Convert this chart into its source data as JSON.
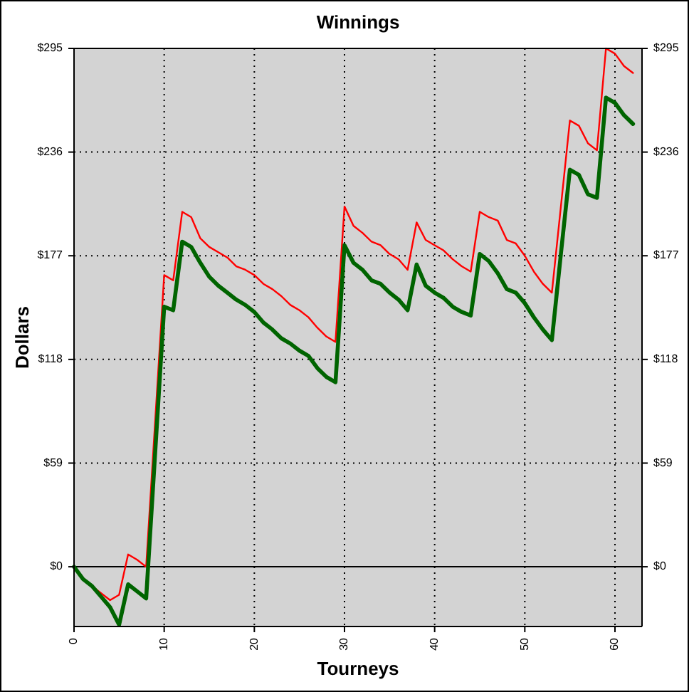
{
  "chart_data": {
    "type": "line",
    "title": "Winnings",
    "xlabel": "Tourneys",
    "ylabel": "Dollars",
    "x": [
      0,
      1,
      2,
      3,
      4,
      5,
      6,
      7,
      8,
      9,
      10,
      11,
      12,
      13,
      14,
      15,
      16,
      17,
      18,
      19,
      20,
      21,
      22,
      23,
      24,
      25,
      26,
      27,
      28,
      29,
      30,
      31,
      32,
      33,
      34,
      35,
      36,
      37,
      38,
      39,
      40,
      41,
      42,
      43,
      44,
      45,
      46,
      47,
      48,
      49,
      50,
      51,
      52,
      53,
      54,
      55,
      56,
      57,
      58,
      59,
      60,
      61,
      62
    ],
    "series": [
      {
        "color": "#ff0000",
        "values": [
          0,
          -7,
          -11,
          -15,
          -19,
          -16,
          7,
          4,
          0,
          83,
          166,
          163,
          202,
          199,
          187,
          182,
          179,
          176,
          171,
          169,
          166,
          161,
          158,
          154,
          149,
          146,
          142,
          136,
          131,
          128,
          205,
          194,
          190,
          185,
          183,
          178,
          175,
          169,
          196,
          186,
          183,
          180,
          175,
          171,
          168,
          202,
          199,
          197,
          186,
          184,
          177,
          168,
          161,
          156,
          205,
          254,
          251,
          241,
          237,
          295,
          292,
          285,
          281
        ]
      },
      {
        "color": "#006400",
        "values": [
          0,
          -7,
          -11,
          -17,
          -23,
          -33,
          -10,
          -14,
          -18,
          65,
          148,
          146,
          185,
          182,
          173,
          165,
          160,
          156,
          152,
          149,
          145,
          139,
          135,
          130,
          127,
          123,
          120,
          113,
          108,
          105,
          183,
          173,
          169,
          163,
          161,
          156,
          152,
          146,
          172,
          160,
          156,
          153,
          148,
          145,
          143,
          178,
          174,
          167,
          158,
          156,
          150,
          142,
          135,
          129,
          178,
          226,
          223,
          212,
          210,
          267,
          264,
          257,
          252
        ]
      }
    ],
    "xlim": [
      0,
      63
    ],
    "xticks": [
      0,
      10,
      20,
      30,
      40,
      50,
      60
    ],
    "ylim": [
      -34,
      295
    ],
    "yticks": [
      {
        "value": 0,
        "label": "$0"
      },
      {
        "value": 59,
        "label": "$59"
      },
      {
        "value": 118,
        "label": "$118"
      },
      {
        "value": 177,
        "label": "$177"
      },
      {
        "value": 236,
        "label": "$236"
      },
      {
        "value": 295,
        "label": "$295"
      }
    ],
    "y2lim": [
      -34,
      295
    ],
    "y2ticks": [
      {
        "value": 0,
        "label": "$0"
      },
      {
        "value": 59,
        "label": "$59"
      },
      {
        "value": 118,
        "label": "$118"
      },
      {
        "value": 177,
        "label": "$177"
      },
      {
        "value": 236,
        "label": "$236"
      },
      {
        "value": 295,
        "label": "$295"
      }
    ],
    "ref_lines": [
      {
        "axis": "y",
        "value": 0,
        "color": "#000000"
      }
    ],
    "grid": true
  }
}
